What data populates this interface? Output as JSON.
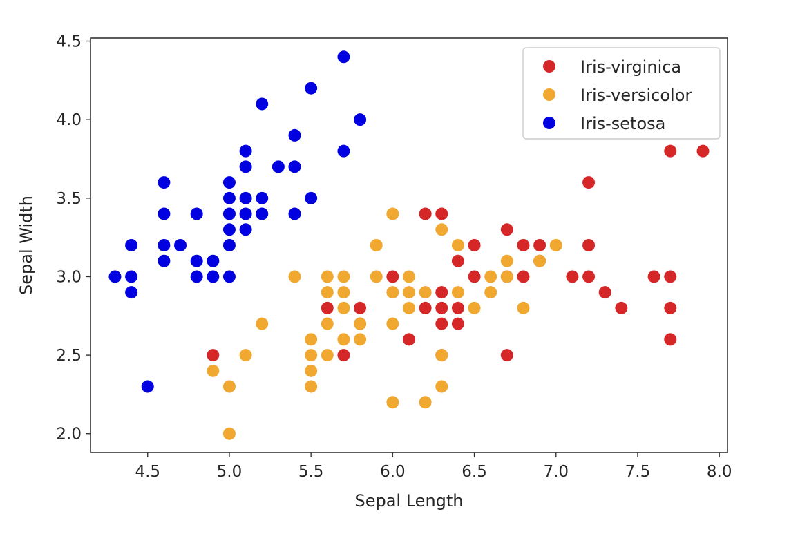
{
  "chart_data": {
    "type": "scatter",
    "title": "",
    "xlabel": "Sepal Length",
    "ylabel": "Sepal Width",
    "xlim": [
      4.15,
      8.05
    ],
    "ylim": [
      1.88,
      4.52
    ],
    "xticks": [
      4.5,
      5.0,
      5.5,
      6.0,
      6.5,
      7.0,
      7.5,
      8.0
    ],
    "xtick_labels": [
      "4.5",
      "5.0",
      "5.5",
      "6.0",
      "6.5",
      "7.0",
      "7.5",
      "8.0"
    ],
    "yticks": [
      2.0,
      2.5,
      3.0,
      3.5,
      4.0,
      4.5
    ],
    "ytick_labels": [
      "2.0",
      "2.5",
      "3.0",
      "3.5",
      "4.0",
      "4.5"
    ],
    "grid": false,
    "legend": "top-right",
    "series": [
      {
        "name": "Iris-virginica",
        "color": "#d62728",
        "points": [
          [
            7.7,
            3.8
          ],
          [
            7.9,
            3.8
          ],
          [
            7.2,
            3.6
          ],
          [
            6.2,
            3.4
          ],
          [
            6.3,
            3.4
          ],
          [
            6.7,
            3.3
          ],
          [
            6.5,
            3.2
          ],
          [
            6.8,
            3.2
          ],
          [
            6.9,
            3.2
          ],
          [
            7.2,
            3.2
          ],
          [
            6.4,
            3.1
          ],
          [
            6.9,
            3.1
          ],
          [
            6.0,
            3.0
          ],
          [
            6.5,
            3.0
          ],
          [
            6.7,
            3.0
          ],
          [
            6.8,
            3.0
          ],
          [
            7.1,
            3.0
          ],
          [
            7.2,
            3.0
          ],
          [
            7.6,
            3.0
          ],
          [
            7.7,
            3.0
          ],
          [
            6.3,
            2.9
          ],
          [
            7.3,
            2.9
          ],
          [
            5.6,
            2.8
          ],
          [
            5.8,
            2.8
          ],
          [
            6.2,
            2.8
          ],
          [
            6.3,
            2.8
          ],
          [
            6.4,
            2.8
          ],
          [
            7.4,
            2.8
          ],
          [
            7.7,
            2.8
          ],
          [
            5.8,
            2.7
          ],
          [
            6.3,
            2.7
          ],
          [
            6.4,
            2.7
          ],
          [
            6.1,
            2.6
          ],
          [
            7.7,
            2.6
          ],
          [
            4.9,
            2.5
          ],
          [
            5.7,
            2.5
          ],
          [
            6.3,
            2.5
          ],
          [
            6.7,
            2.5
          ]
        ]
      },
      {
        "name": "Iris-versicolor",
        "color": "#f0a830",
        "points": [
          [
            6.0,
            3.4
          ],
          [
            6.3,
            3.3
          ],
          [
            5.9,
            3.2
          ],
          [
            6.4,
            3.2
          ],
          [
            7.0,
            3.2
          ],
          [
            6.7,
            3.1
          ],
          [
            6.9,
            3.1
          ],
          [
            5.4,
            3.0
          ],
          [
            5.6,
            3.0
          ],
          [
            5.7,
            3.0
          ],
          [
            5.9,
            3.0
          ],
          [
            6.1,
            3.0
          ],
          [
            6.6,
            3.0
          ],
          [
            6.7,
            3.0
          ],
          [
            5.6,
            2.9
          ],
          [
            5.7,
            2.9
          ],
          [
            6.0,
            2.9
          ],
          [
            6.1,
            2.9
          ],
          [
            6.2,
            2.9
          ],
          [
            6.4,
            2.9
          ],
          [
            6.6,
            2.9
          ],
          [
            5.7,
            2.8
          ],
          [
            6.1,
            2.8
          ],
          [
            6.5,
            2.8
          ],
          [
            6.8,
            2.8
          ],
          [
            5.2,
            2.7
          ],
          [
            5.6,
            2.7
          ],
          [
            5.8,
            2.7
          ],
          [
            6.0,
            2.7
          ],
          [
            5.5,
            2.6
          ],
          [
            5.7,
            2.6
          ],
          [
            5.8,
            2.6
          ],
          [
            5.1,
            2.5
          ],
          [
            5.5,
            2.5
          ],
          [
            5.6,
            2.5
          ],
          [
            6.3,
            2.5
          ],
          [
            4.9,
            2.4
          ],
          [
            5.5,
            2.4
          ],
          [
            5.0,
            2.3
          ],
          [
            5.5,
            2.3
          ],
          [
            6.3,
            2.3
          ],
          [
            6.0,
            2.2
          ],
          [
            6.2,
            2.2
          ],
          [
            5.0,
            2.0
          ]
        ]
      },
      {
        "name": "Iris-setosa",
        "color": "#0000e0",
        "points": [
          [
            5.7,
            4.4
          ],
          [
            5.5,
            4.2
          ],
          [
            5.2,
            4.1
          ],
          [
            5.8,
            4.0
          ],
          [
            5.4,
            3.9
          ],
          [
            5.1,
            3.8
          ],
          [
            5.7,
            3.8
          ],
          [
            5.1,
            3.7
          ],
          [
            5.3,
            3.7
          ],
          [
            5.4,
            3.7
          ],
          [
            4.6,
            3.6
          ],
          [
            5.0,
            3.6
          ],
          [
            5.0,
            3.5
          ],
          [
            5.1,
            3.5
          ],
          [
            5.2,
            3.5
          ],
          [
            5.5,
            3.5
          ],
          [
            4.6,
            3.4
          ],
          [
            4.8,
            3.4
          ],
          [
            5.0,
            3.4
          ],
          [
            5.1,
            3.4
          ],
          [
            5.2,
            3.4
          ],
          [
            5.4,
            3.4
          ],
          [
            5.0,
            3.3
          ],
          [
            5.1,
            3.3
          ],
          [
            4.4,
            3.2
          ],
          [
            4.6,
            3.2
          ],
          [
            4.7,
            3.2
          ],
          [
            5.0,
            3.2
          ],
          [
            4.6,
            3.1
          ],
          [
            4.8,
            3.1
          ],
          [
            4.9,
            3.1
          ],
          [
            4.3,
            3.0
          ],
          [
            4.4,
            3.0
          ],
          [
            4.8,
            3.0
          ],
          [
            4.9,
            3.0
          ],
          [
            5.0,
            3.0
          ],
          [
            4.4,
            2.9
          ],
          [
            4.5,
            2.3
          ]
        ]
      }
    ]
  }
}
